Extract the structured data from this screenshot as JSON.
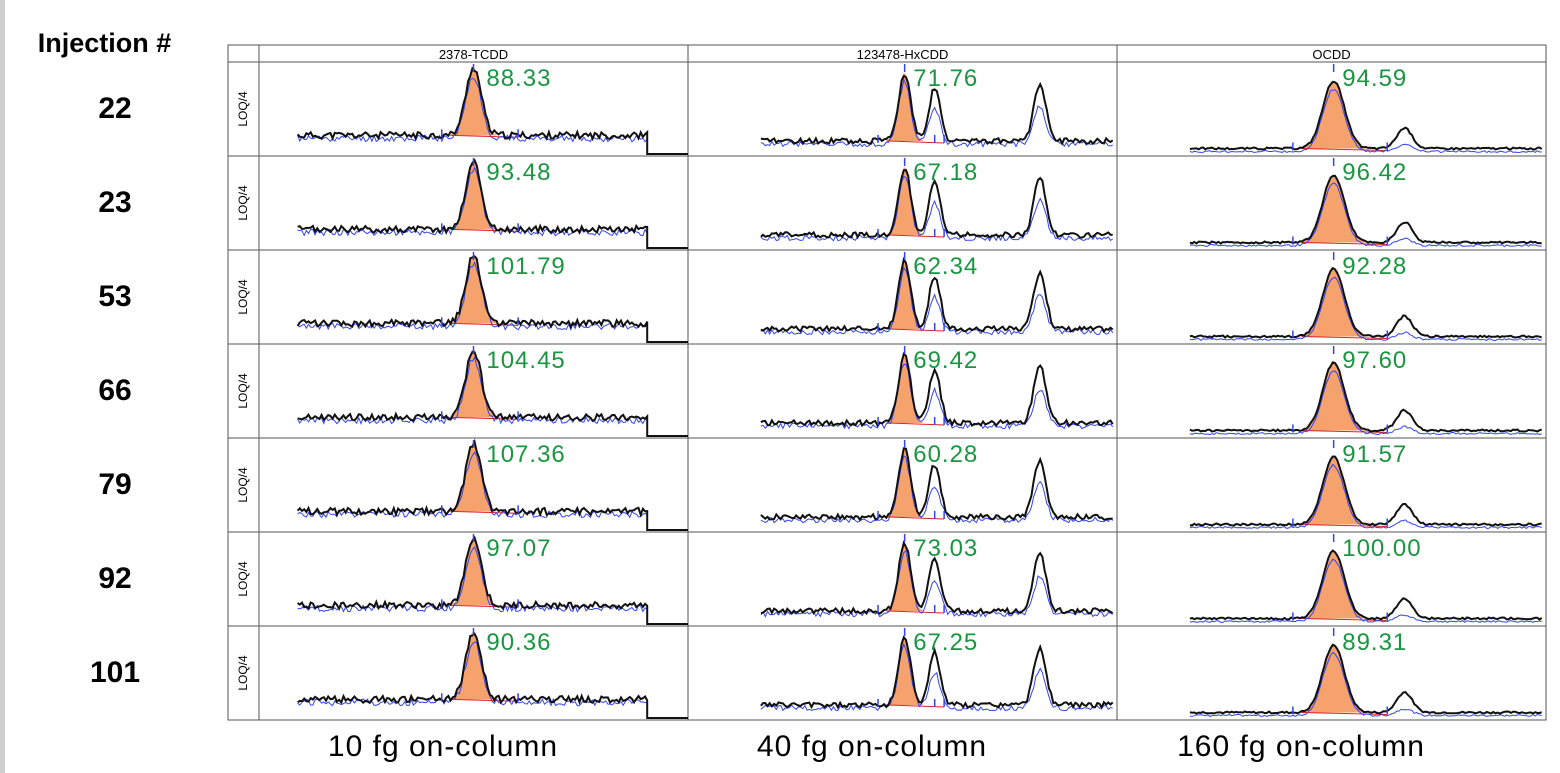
{
  "header": {
    "injection_label": "Injection #"
  },
  "bottom_labels": [
    "10 fg on-column",
    "40 fg on-column",
    "160 fg on-column"
  ],
  "colors": {
    "fill": "#f5a26c",
    "black_trace": "#111111",
    "blue_trace": "#3344ee",
    "value_text": "#1a9641",
    "baseline": "#e02020"
  },
  "chart_data": {
    "type": "chromatogram-grid",
    "columns": [
      "2378-TCDD",
      "123478-HxCDD",
      "OCDD"
    ],
    "row_ylabel": "LOQ/4",
    "injections": [
      "22",
      "23",
      "53",
      "66",
      "79",
      "92",
      "101"
    ],
    "values": [
      [
        "88.33",
        "71.76",
        "94.59"
      ],
      [
        "93.48",
        "67.18",
        "96.42"
      ],
      [
        "101.79",
        "62.34",
        "92.28"
      ],
      [
        "104.45",
        "69.42",
        "97.60"
      ],
      [
        "107.36",
        "60.28",
        "91.57"
      ],
      [
        "97.07",
        "73.03",
        "100.00"
      ],
      [
        "90.36",
        "67.25",
        "89.31"
      ]
    ]
  }
}
